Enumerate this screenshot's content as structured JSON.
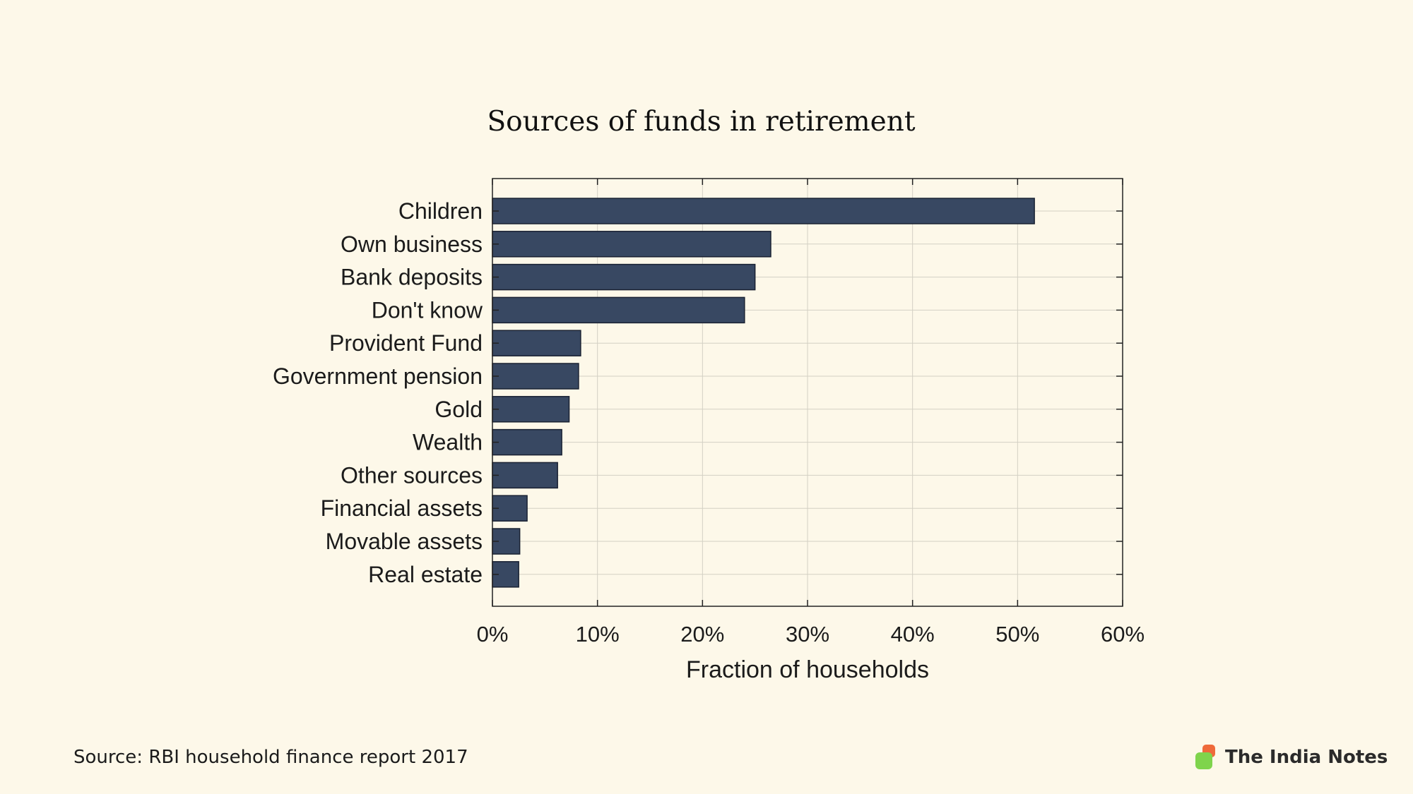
{
  "source": "Source: RBI household finance report 2017",
  "brand": {
    "name": "The India Notes",
    "logo_colors": [
      "#ef6a3a",
      "#7fd44c"
    ]
  },
  "colors": {
    "background": "#fdf8e9",
    "bar": "#384862",
    "bar_edge": "#1a2233"
  },
  "chart_data": {
    "type": "bar",
    "orientation": "horizontal",
    "title": "Sources of funds in retirement",
    "xlabel": "Fraction of households",
    "ylabel": "",
    "categories": [
      "Children",
      "Own business",
      "Bank deposits",
      "Don't know",
      "Provident Fund",
      "Government pension",
      "Gold",
      "Wealth",
      "Other sources",
      "Financial assets",
      "Movable assets",
      "Real estate"
    ],
    "values": [
      51.6,
      26.5,
      25.0,
      24.0,
      8.4,
      8.2,
      7.3,
      6.6,
      6.2,
      3.3,
      2.6,
      2.5
    ],
    "xlim": [
      0,
      60
    ],
    "xticks": [
      0,
      10,
      20,
      30,
      40,
      50,
      60
    ],
    "xtick_labels": [
      "0%",
      "10%",
      "20%",
      "30%",
      "40%",
      "50%",
      "60%"
    ],
    "grid": true,
    "legend": "none"
  }
}
